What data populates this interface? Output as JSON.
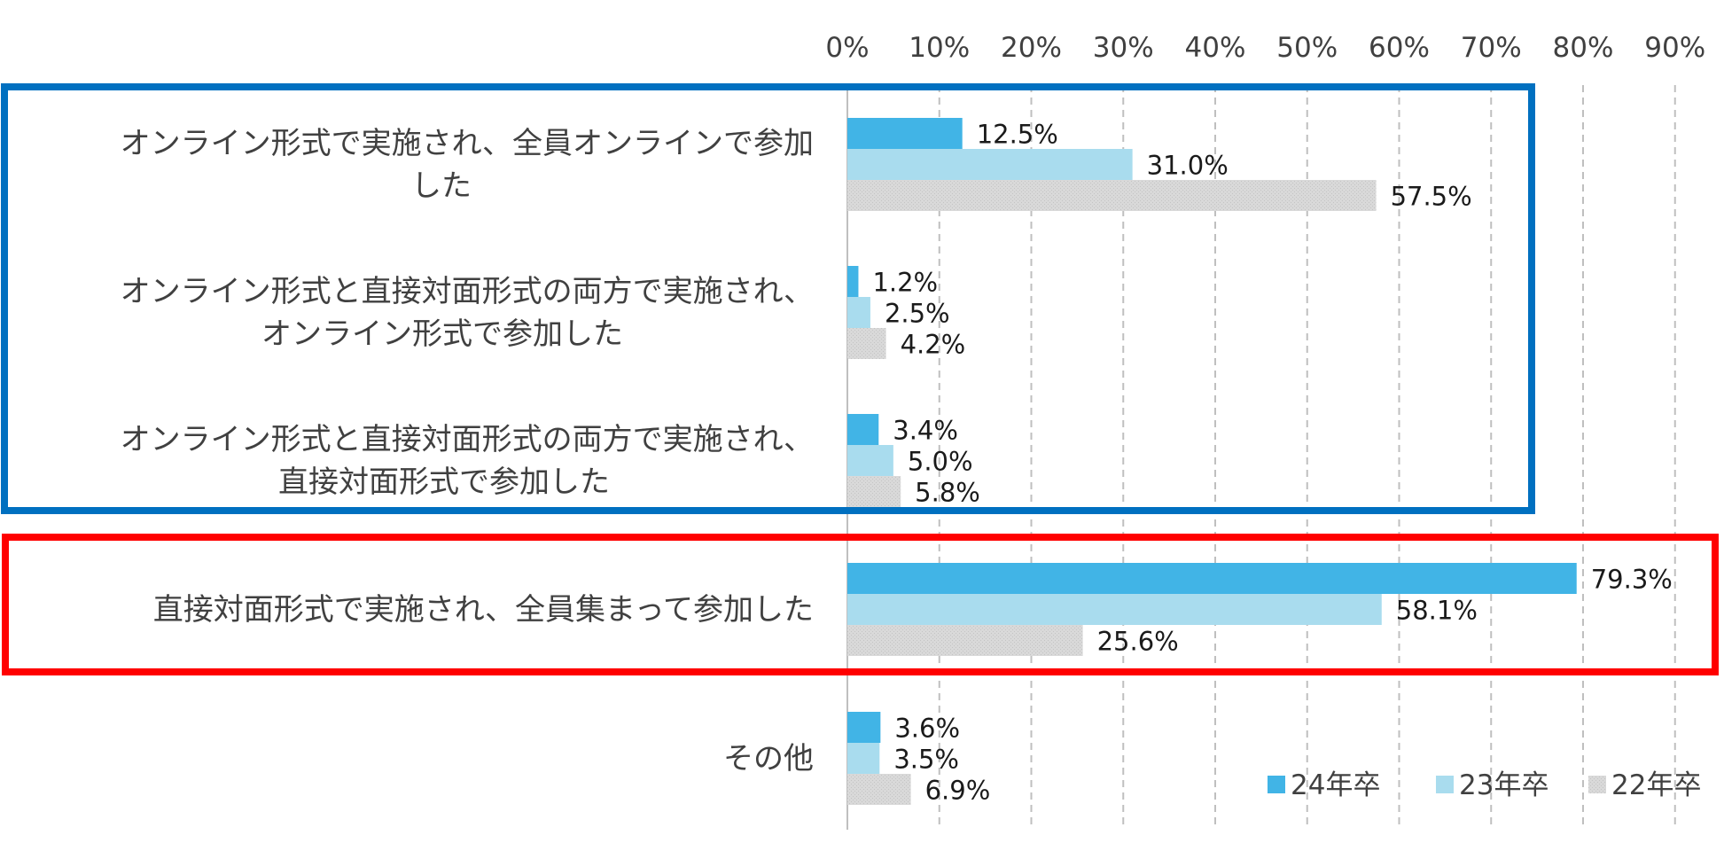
{
  "chart_data": {
    "type": "bar",
    "orientation": "horizontal",
    "xlim": [
      0,
      90
    ],
    "x_ticks": [
      "0%",
      "10%",
      "20%",
      "30%",
      "40%",
      "50%",
      "60%",
      "70%",
      "80%",
      "90%"
    ],
    "categories": [
      [
        "オンライン形式で実施され、全員オンラインで参加",
        "した"
      ],
      [
        "オンライン形式と直接対面形式の両方で実施され、",
        "オンライン形式で参加した"
      ],
      [
        "オンライン形式と直接対面形式の両方で実施され、",
        "直接対面形式で参加した"
      ],
      [
        "直接対面形式で実施され、全員集まって参加した"
      ],
      [
        "その他"
      ]
    ],
    "series": [
      {
        "name": "24年卒",
        "color": "#41b4e6",
        "values": [
          12.5,
          1.2,
          3.4,
          79.3,
          3.6
        ],
        "labels": [
          "12.5%",
          "1.2%",
          "3.4%",
          "79.3%",
          "3.6%"
        ]
      },
      {
        "name": "23年卒",
        "color": "#a9dcee",
        "values": [
          31.0,
          2.5,
          5.0,
          58.1,
          3.5
        ],
        "labels": [
          "31.0%",
          "2.5%",
          "5.0%",
          "58.1%",
          "3.5%"
        ]
      },
      {
        "name": "22年卒",
        "color": "#d6d6d6",
        "values": [
          57.5,
          4.2,
          5.8,
          25.6,
          6.9
        ],
        "labels": [
          "57.5%",
          "4.2%",
          "5.8%",
          "25.6%",
          "6.9%"
        ]
      }
    ],
    "grid": true,
    "gridline_style": "dashed",
    "legend_position": "bottom-right",
    "highlight_boxes": [
      {
        "categories": [
          0,
          1,
          2
        ],
        "color": "#0070c0"
      },
      {
        "categories": [
          3
        ],
        "color": "#ff0000"
      }
    ]
  }
}
